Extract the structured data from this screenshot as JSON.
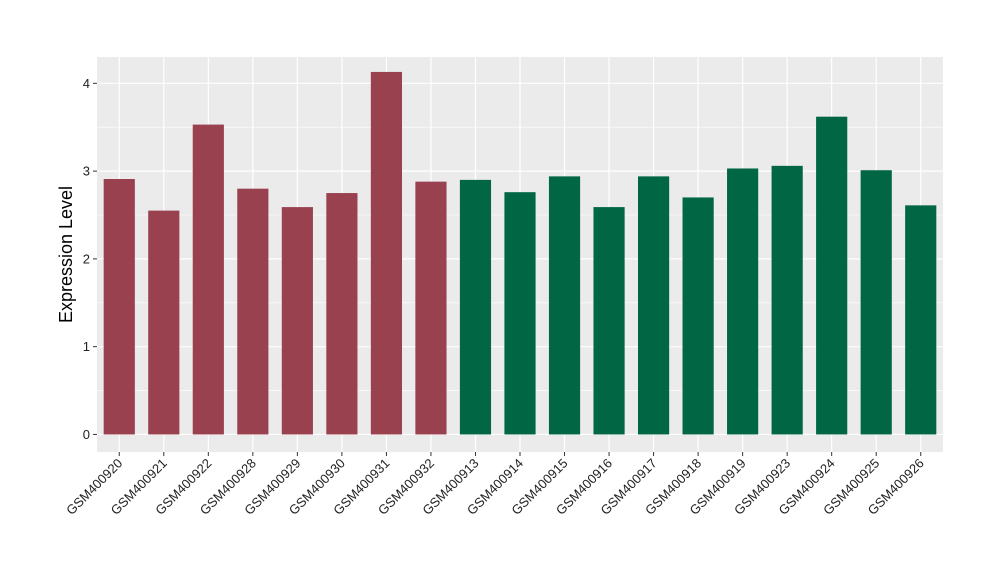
{
  "chart_data": {
    "type": "bar",
    "title": "",
    "xlabel": "",
    "ylabel": "Expression Level",
    "ylim": [
      -0.2,
      4.3
    ],
    "yticks": [
      0,
      1,
      2,
      3,
      4
    ],
    "grid": true,
    "legend": "none",
    "colors": {
      "group_1": "#9a4150",
      "group_2": "#006644",
      "panel_background": "#ebebeb",
      "grid": "#ffffff"
    },
    "categories": [
      "GSM400920",
      "GSM400921",
      "GSM400922",
      "GSM400928",
      "GSM400929",
      "GSM400930",
      "GSM400931",
      "GSM400932",
      "GSM400913",
      "GSM400914",
      "GSM400915",
      "GSM400916",
      "GSM400917",
      "GSM400918",
      "GSM400919",
      "GSM400923",
      "GSM400924",
      "GSM400925",
      "GSM400926"
    ],
    "values": [
      2.91,
      2.55,
      3.53,
      2.8,
      2.59,
      2.75,
      4.13,
      2.88,
      2.9,
      2.76,
      2.94,
      2.59,
      2.94,
      2.7,
      3.03,
      3.06,
      3.62,
      3.01,
      2.61
    ],
    "group": [
      1,
      1,
      1,
      1,
      1,
      1,
      1,
      1,
      2,
      2,
      2,
      2,
      2,
      2,
      2,
      2,
      2,
      2,
      2
    ]
  }
}
